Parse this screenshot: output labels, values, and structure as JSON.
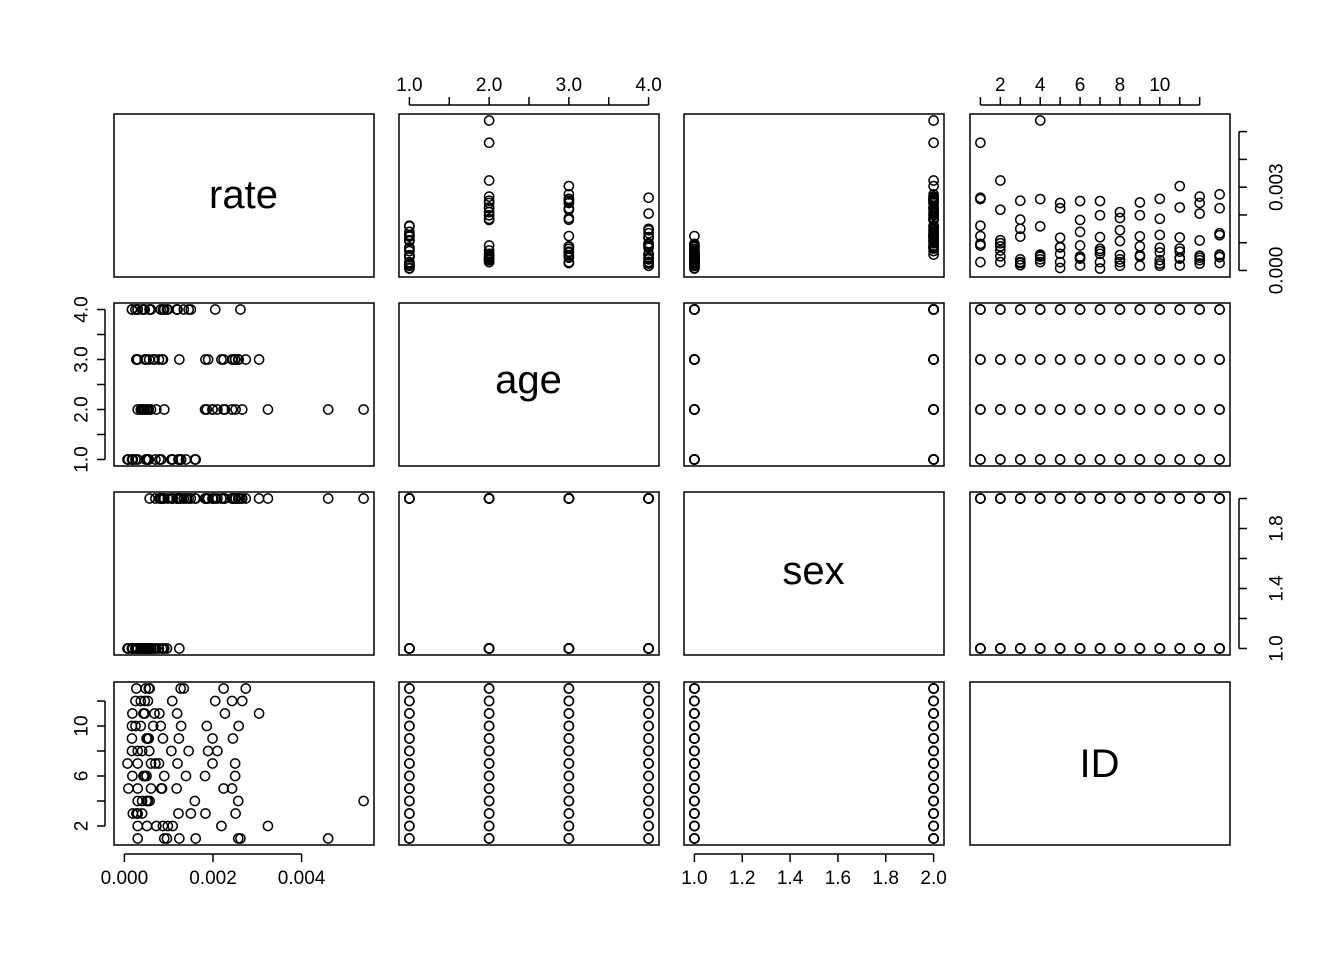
{
  "chart_data": {
    "type": "scatter",
    "variables": [
      "rate",
      "age",
      "sex",
      "ID"
    ],
    "diagonal_labels": [
      "rate",
      "age",
      "sex",
      "ID"
    ],
    "ranges": {
      "rate": [
        0.0,
        0.0054
      ],
      "age": [
        1,
        4
      ],
      "sex": [
        1,
        2
      ],
      "ID": [
        1,
        13
      ]
    },
    "axes": {
      "rate": {
        "ticks": [
          0.0,
          0.002,
          0.004
        ],
        "labels": [
          "0.000",
          "0.002",
          "0.004"
        ]
      },
      "age": {
        "ticks": [
          1,
          1.5,
          2,
          2.5,
          3,
          3.5,
          4
        ],
        "labels": [
          "1.0",
          "",
          "2.0",
          "",
          "3.0",
          "",
          "4.0"
        ]
      },
      "sex": {
        "ticks": [
          1,
          1.2,
          1.4,
          1.6,
          1.8,
          2
        ],
        "labels": [
          "1.0",
          "1.2",
          "1.4",
          "1.6",
          "1.8",
          "2.0"
        ]
      },
      "sex_right": {
        "ticks": [
          1,
          1.2,
          1.4,
          1.6,
          1.8,
          2
        ],
        "labels": [
          "1.0",
          "",
          "1.4",
          "",
          "1.8",
          ""
        ]
      },
      "ID_left": {
        "ticks": [
          2,
          4,
          6,
          8,
          10,
          12
        ],
        "labels": [
          "2",
          "",
          "6",
          "",
          "10",
          ""
        ]
      },
      "ID_top": {
        "ticks": [
          1,
          2,
          3,
          4,
          5,
          6,
          7,
          8,
          9,
          10,
          11,
          12
        ],
        "labels": [
          "",
          "2",
          "",
          "4",
          "",
          "6",
          "",
          "8",
          "",
          "10",
          "",
          ""
        ]
      },
      "rate_right": {
        "ticks": [
          0.0,
          0.001,
          0.002,
          0.003,
          0.004,
          0.005
        ],
        "labels": [
          "0.000",
          "",
          "",
          "0.003",
          "",
          ""
        ]
      }
    },
    "records": [
      {
        "ID": 1,
        "age": 1,
        "sex": 1,
        "rate": 0.0003
      },
      {
        "ID": 1,
        "age": 1,
        "sex": 2,
        "rate": 0.00161
      },
      {
        "ID": 1,
        "age": 2,
        "sex": 1,
        "rate": 0.0009
      },
      {
        "ID": 1,
        "age": 2,
        "sex": 2,
        "rate": 0.0046
      },
      {
        "ID": 1,
        "age": 3,
        "sex": 1,
        "rate": 0.00124
      },
      {
        "ID": 1,
        "age": 3,
        "sex": 2,
        "rate": 0.00257
      },
      {
        "ID": 1,
        "age": 4,
        "sex": 1,
        "rate": 0.00096
      },
      {
        "ID": 1,
        "age": 4,
        "sex": 2,
        "rate": 0.00262
      },
      {
        "ID": 2,
        "age": 1,
        "sex": 1,
        "rate": 0.00051
      },
      {
        "ID": 2,
        "age": 1,
        "sex": 2,
        "rate": 0.00109
      },
      {
        "ID": 2,
        "age": 2,
        "sex": 1,
        "rate": 0.00072
      },
      {
        "ID": 2,
        "age": 2,
        "sex": 2,
        "rate": 0.00324
      },
      {
        "ID": 2,
        "age": 3,
        "sex": 1,
        "rate": 0.00087
      },
      {
        "ID": 2,
        "age": 3,
        "sex": 2,
        "rate": 0.00219
      },
      {
        "ID": 2,
        "age": 4,
        "sex": 1,
        "rate": 0.0003
      },
      {
        "ID": 2,
        "age": 4,
        "sex": 2,
        "rate": 0.00098
      },
      {
        "ID": 3,
        "age": 1,
        "sex": 1,
        "rate": 0.00019
      },
      {
        "ID": 3,
        "age": 1,
        "sex": 2,
        "rate": 0.00122
      },
      {
        "ID": 3,
        "age": 2,
        "sex": 1,
        "rate": 0.0004
      },
      {
        "ID": 3,
        "age": 2,
        "sex": 2,
        "rate": 0.00251
      },
      {
        "ID": 3,
        "age": 3,
        "sex": 1,
        "rate": 0.00027
      },
      {
        "ID": 3,
        "age": 3,
        "sex": 2,
        "rate": 0.00183
      },
      {
        "ID": 3,
        "age": 4,
        "sex": 1,
        "rate": 0.0003
      },
      {
        "ID": 3,
        "age": 4,
        "sex": 2,
        "rate": 0.0015
      },
      {
        "ID": 4,
        "age": 1,
        "sex": 1,
        "rate": 0.00053
      },
      {
        "ID": 4,
        "age": 1,
        "sex": 2,
        "rate": 0.00159
      },
      {
        "ID": 4,
        "age": 2,
        "sex": 1,
        "rate": 0.0005
      },
      {
        "ID": 4,
        "age": 2,
        "sex": 2,
        "rate": 0.0054
      },
      {
        "ID": 4,
        "age": 3,
        "sex": 1,
        "rate": 0.0003
      },
      {
        "ID": 4,
        "age": 3,
        "sex": 2,
        "rate": 0.00257
      },
      {
        "ID": 4,
        "age": 4,
        "sex": 1,
        "rate": 0.0004
      },
      {
        "ID": 4,
        "age": 4,
        "sex": 2,
        "rate": 0.00057
      },
      {
        "ID": 5,
        "age": 1,
        "sex": 1,
        "rate": 9e-05
      },
      {
        "ID": 5,
        "age": 1,
        "sex": 2,
        "rate": 0.00083
      },
      {
        "ID": 5,
        "age": 2,
        "sex": 1,
        "rate": 0.0006
      },
      {
        "ID": 5,
        "age": 2,
        "sex": 2,
        "rate": 0.00243
      },
      {
        "ID": 5,
        "age": 3,
        "sex": 1,
        "rate": 0.00085
      },
      {
        "ID": 5,
        "age": 3,
        "sex": 2,
        "rate": 0.00224
      },
      {
        "ID": 5,
        "age": 4,
        "sex": 1,
        "rate": 0.0003
      },
      {
        "ID": 5,
        "age": 4,
        "sex": 2,
        "rate": 0.00118
      },
      {
        "ID": 6,
        "age": 1,
        "sex": 1,
        "rate": 0.00018
      },
      {
        "ID": 6,
        "age": 1,
        "sex": 2,
        "rate": 0.00139
      },
      {
        "ID": 6,
        "age": 2,
        "sex": 1,
        "rate": 0.00046
      },
      {
        "ID": 6,
        "age": 2,
        "sex": 2,
        "rate": 0.00182
      },
      {
        "ID": 6,
        "age": 3,
        "sex": 1,
        "rate": 0.0005
      },
      {
        "ID": 6,
        "age": 3,
        "sex": 2,
        "rate": 0.0025
      },
      {
        "ID": 6,
        "age": 4,
        "sex": 1,
        "rate": 0.00043
      },
      {
        "ID": 6,
        "age": 4,
        "sex": 2,
        "rate": 0.0009
      },
      {
        "ID": 7,
        "age": 1,
        "sex": 1,
        "rate": 7e-05
      },
      {
        "ID": 7,
        "age": 1,
        "sex": 2,
        "rate": 0.0007
      },
      {
        "ID": 7,
        "age": 2,
        "sex": 1,
        "rate": 0.0003
      },
      {
        "ID": 7,
        "age": 2,
        "sex": 2,
        "rate": 0.00199
      },
      {
        "ID": 7,
        "age": 3,
        "sex": 1,
        "rate": 0.00078
      },
      {
        "ID": 7,
        "age": 3,
        "sex": 2,
        "rate": 0.0025
      },
      {
        "ID": 7,
        "age": 4,
        "sex": 1,
        "rate": 0.0006
      },
      {
        "ID": 7,
        "age": 4,
        "sex": 2,
        "rate": 0.0012
      },
      {
        "ID": 8,
        "age": 1,
        "sex": 1,
        "rate": 0.00017
      },
      {
        "ID": 8,
        "age": 1,
        "sex": 2,
        "rate": 0.00106
      },
      {
        "ID": 8,
        "age": 2,
        "sex": 1,
        "rate": 0.0004
      },
      {
        "ID": 8,
        "age": 2,
        "sex": 2,
        "rate": 0.0021
      },
      {
        "ID": 8,
        "age": 3,
        "sex": 1,
        "rate": 0.00056
      },
      {
        "ID": 8,
        "age": 3,
        "sex": 2,
        "rate": 0.00189
      },
      {
        "ID": 8,
        "age": 4,
        "sex": 1,
        "rate": 0.0003
      },
      {
        "ID": 8,
        "age": 4,
        "sex": 2,
        "rate": 0.00145
      },
      {
        "ID": 9,
        "age": 1,
        "sex": 1,
        "rate": 0.00055
      },
      {
        "ID": 9,
        "age": 1,
        "sex": 2,
        "rate": 0.00123
      },
      {
        "ID": 9,
        "age": 2,
        "sex": 1,
        "rate": 0.00052
      },
      {
        "ID": 9,
        "age": 2,
        "sex": 2,
        "rate": 0.00199
      },
      {
        "ID": 9,
        "age": 3,
        "sex": 1,
        "rate": 0.0005
      },
      {
        "ID": 9,
        "age": 3,
        "sex": 2,
        "rate": 0.00245
      },
      {
        "ID": 9,
        "age": 4,
        "sex": 1,
        "rate": 0.00017
      },
      {
        "ID": 9,
        "age": 4,
        "sex": 2,
        "rate": 0.00087
      },
      {
        "ID": 10,
        "age": 1,
        "sex": 1,
        "rate": 0.00025
      },
      {
        "ID": 10,
        "age": 1,
        "sex": 2,
        "rate": 0.00128
      },
      {
        "ID": 10,
        "age": 2,
        "sex": 1,
        "rate": 0.00037
      },
      {
        "ID": 10,
        "age": 2,
        "sex": 2,
        "rate": 0.00186
      },
      {
        "ID": 10,
        "age": 3,
        "sex": 1,
        "rate": 0.00065
      },
      {
        "ID": 10,
        "age": 3,
        "sex": 2,
        "rate": 0.00258
      },
      {
        "ID": 10,
        "age": 4,
        "sex": 1,
        "rate": 0.00017
      },
      {
        "ID": 10,
        "age": 4,
        "sex": 2,
        "rate": 0.00082
      },
      {
        "ID": 11,
        "age": 1,
        "sex": 1,
        "rate": 0.00018
      },
      {
        "ID": 11,
        "age": 1,
        "sex": 2,
        "rate": 0.00079
      },
      {
        "ID": 11,
        "age": 2,
        "sex": 1,
        "rate": 0.00043
      },
      {
        "ID": 11,
        "age": 2,
        "sex": 2,
        "rate": 0.00227
      },
      {
        "ID": 11,
        "age": 3,
        "sex": 1,
        "rate": 0.00068
      },
      {
        "ID": 11,
        "age": 3,
        "sex": 2,
        "rate": 0.00304
      },
      {
        "ID": 11,
        "age": 4,
        "sex": 1,
        "rate": 0.00046
      },
      {
        "ID": 11,
        "age": 4,
        "sex": 2,
        "rate": 0.00119
      },
      {
        "ID": 12,
        "age": 1,
        "sex": 1,
        "rate": 0.00053
      },
      {
        "ID": 12,
        "age": 1,
        "sex": 2,
        "rate": 0.00108
      },
      {
        "ID": 12,
        "age": 2,
        "sex": 1,
        "rate": 0.00037
      },
      {
        "ID": 12,
        "age": 2,
        "sex": 2,
        "rate": 0.00266
      },
      {
        "ID": 12,
        "age": 3,
        "sex": 1,
        "rate": 0.00046
      },
      {
        "ID": 12,
        "age": 3,
        "sex": 2,
        "rate": 0.00243
      },
      {
        "ID": 12,
        "age": 4,
        "sex": 1,
        "rate": 0.00025
      },
      {
        "ID": 12,
        "age": 4,
        "sex": 2,
        "rate": 0.00205
      },
      {
        "ID": 13,
        "age": 1,
        "sex": 1,
        "rate": 0.00048
      },
      {
        "ID": 13,
        "age": 1,
        "sex": 2,
        "rate": 0.00127
      },
      {
        "ID": 13,
        "age": 2,
        "sex": 1,
        "rate": 0.00055
      },
      {
        "ID": 13,
        "age": 2,
        "sex": 2,
        "rate": 0.00224
      },
      {
        "ID": 13,
        "age": 3,
        "sex": 1,
        "rate": 0.00027
      },
      {
        "ID": 13,
        "age": 3,
        "sex": 2,
        "rate": 0.00274
      },
      {
        "ID": 13,
        "age": 4,
        "sex": 1,
        "rate": 0.00057
      },
      {
        "ID": 13,
        "age": 4,
        "sex": 2,
        "rate": 0.00134
      }
    ],
    "grid": false,
    "legend": "none"
  }
}
